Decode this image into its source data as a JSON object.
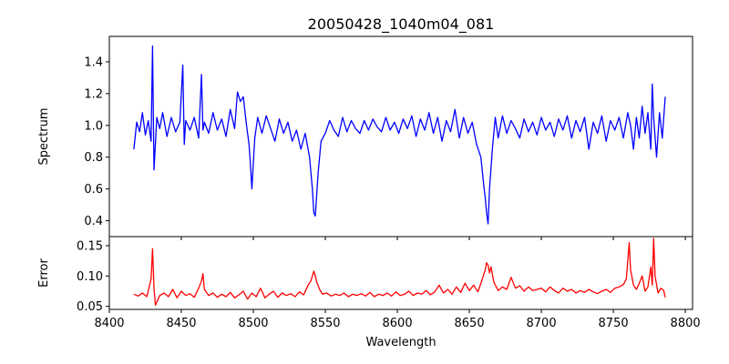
{
  "chart_data": {
    "type": "line",
    "title": "20050428_1040m04_081",
    "xlabel": "Wavelength",
    "xlim": [
      8400,
      8805
    ],
    "x_ticks": [
      "8400",
      "8450",
      "8500",
      "8550",
      "8600",
      "8650",
      "8700",
      "8750",
      "8800"
    ],
    "x_tick_values": [
      8400,
      8450,
      8500,
      8550,
      8600,
      8650,
      8700,
      8750,
      8800
    ],
    "panels": [
      {
        "name": "spectrum",
        "ylabel": "Spectrum",
        "ylim": [
          0.3,
          1.56
        ],
        "y_ticks": [
          "0.4",
          "0.6",
          "0.8",
          "1.0",
          "1.2",
          "1.4"
        ],
        "y_tick_values": [
          0.4,
          0.6,
          0.8,
          1.0,
          1.2,
          1.4
        ],
        "series": [
          {
            "name": "Spectrum",
            "color": "#0000ff",
            "x": [
              8417,
              8419,
              8421,
              8423,
              8425,
              8427,
              8429,
              8430,
              8431,
              8433,
              8435,
              8437,
              8440,
              8443,
              8446,
              8449,
              8451,
              8452,
              8453,
              8456,
              8459,
              8462,
              8464,
              8465,
              8466,
              8469,
              8472,
              8475,
              8478,
              8481,
              8484,
              8487,
              8489,
              8491,
              8493,
              8495,
              8497,
              8498,
              8499,
              8501,
              8503,
              8506,
              8509,
              8512,
              8515,
              8518,
              8521,
              8524,
              8527,
              8530,
              8533,
              8536,
              8539,
              8541,
              8542,
              8543,
              8545,
              8547,
              8550,
              8553,
              8556,
              8559,
              8562,
              8565,
              8568,
              8571,
              8574,
              8577,
              8580,
              8583,
              8586,
              8589,
              8592,
              8595,
              8598,
              8601,
              8604,
              8607,
              8610,
              8613,
              8616,
              8619,
              8622,
              8625,
              8628,
              8631,
              8634,
              8637,
              8640,
              8643,
              8646,
              8649,
              8652,
              8655,
              8658,
              8660,
              8661,
              8662,
              8663,
              8664,
              8666,
              8668,
              8670,
              8673,
              8676,
              8679,
              8682,
              8685,
              8688,
              8691,
              8694,
              8697,
              8700,
              8703,
              8706,
              8709,
              8712,
              8715,
              8718,
              8721,
              8724,
              8727,
              8730,
              8733,
              8736,
              8739,
              8742,
              8745,
              8748,
              8751,
              8754,
              8757,
              8760,
              8762,
              8764,
              8766,
              8768,
              8770,
              8772,
              8774,
              8776,
              8777,
              8778,
              8780,
              8782,
              8784,
              8786
            ],
            "y": [
              0.85,
              1.02,
              0.96,
              1.08,
              0.94,
              1.03,
              0.9,
              1.5,
              0.72,
              1.05,
              0.98,
              1.08,
              0.93,
              1.05,
              0.96,
              1.02,
              1.38,
              0.88,
              1.03,
              0.97,
              1.05,
              0.92,
              1.32,
              0.97,
              1.02,
              0.95,
              1.08,
              0.97,
              1.04,
              0.93,
              1.1,
              0.98,
              1.21,
              1.15,
              1.18,
              1.02,
              0.88,
              0.75,
              0.6,
              0.92,
              1.05,
              0.95,
              1.06,
              0.98,
              0.9,
              1.04,
              0.95,
              1.02,
              0.9,
              0.97,
              0.85,
              0.95,
              0.8,
              0.6,
              0.45,
              0.43,
              0.7,
              0.9,
              0.95,
              1.03,
              0.97,
              0.93,
              1.05,
              0.96,
              1.03,
              0.98,
              0.95,
              1.03,
              0.97,
              1.04,
              0.99,
              0.96,
              1.05,
              0.97,
              1.02,
              0.95,
              1.04,
              0.98,
              1.06,
              0.93,
              1.04,
              0.97,
              1.08,
              0.95,
              1.05,
              0.9,
              1.03,
              0.96,
              1.1,
              0.92,
              1.05,
              0.95,
              1.02,
              0.88,
              0.8,
              0.62,
              0.55,
              0.45,
              0.38,
              0.6,
              0.85,
              1.05,
              0.92,
              1.06,
              0.95,
              1.03,
              0.98,
              0.92,
              1.04,
              0.96,
              1.02,
              0.94,
              1.05,
              0.97,
              1.02,
              0.93,
              1.04,
              0.97,
              1.06,
              0.92,
              1.03,
              0.96,
              1.05,
              0.85,
              1.02,
              0.95,
              1.06,
              0.9,
              1.03,
              0.97,
              1.05,
              0.92,
              1.08,
              1.0,
              0.85,
              1.05,
              0.92,
              1.12,
              0.95,
              1.08,
              0.85,
              1.26,
              1.05,
              0.8,
              1.08,
              0.92,
              1.18
            ]
          }
        ]
      },
      {
        "name": "error",
        "ylabel": "Error",
        "ylim": [
          0.045,
          0.165
        ],
        "y_ticks": [
          "0.05",
          "0.10",
          "0.15"
        ],
        "y_tick_values": [
          0.05,
          0.1,
          0.15
        ],
        "series": [
          {
            "name": "Error",
            "color": "#ff0000",
            "x": [
              8417,
              8420,
              8423,
              8426,
              8428,
              8429,
              8430,
              8431,
              8432,
              8435,
              8438,
              8441,
              8444,
              8447,
              8450,
              8453,
              8456,
              8459,
              8462,
              8464,
              8465,
              8466,
              8469,
              8472,
              8475,
              8478,
              8481,
              8484,
              8487,
              8490,
              8493,
              8496,
              8499,
              8502,
              8505,
              8508,
              8511,
              8514,
              8517,
              8520,
              8523,
              8526,
              8529,
              8532,
              8535,
              8538,
              8540,
              8542,
              8543,
              8544,
              8546,
              8548,
              8551,
              8554,
              8557,
              8560,
              8563,
              8566,
              8569,
              8572,
              8575,
              8578,
              8581,
              8584,
              8587,
              8590,
              8593,
              8596,
              8599,
              8602,
              8605,
              8608,
              8611,
              8614,
              8617,
              8620,
              8623,
              8626,
              8629,
              8632,
              8635,
              8638,
              8641,
              8644,
              8647,
              8650,
              8653,
              8656,
              8659,
              8661,
              8662,
              8663,
              8664,
              8665,
              8667,
              8670,
              8673,
              8676,
              8679,
              8682,
              8685,
              8688,
              8691,
              8694,
              8697,
              8700,
              8703,
              8706,
              8709,
              8712,
              8715,
              8718,
              8721,
              8724,
              8727,
              8730,
              8733,
              8736,
              8739,
              8742,
              8745,
              8748,
              8751,
              8754,
              8757,
              8759,
              8760,
              8761,
              8762,
              8764,
              8766,
              8768,
              8770,
              8772,
              8774,
              8776,
              8777,
              8778,
              8779,
              8781,
              8783,
              8785,
              8786
            ],
            "y": [
              0.07,
              0.067,
              0.072,
              0.066,
              0.085,
              0.095,
              0.145,
              0.08,
              0.052,
              0.068,
              0.072,
              0.066,
              0.078,
              0.064,
              0.075,
              0.068,
              0.071,
              0.065,
              0.08,
              0.092,
              0.104,
              0.078,
              0.068,
              0.072,
              0.065,
              0.07,
              0.066,
              0.073,
              0.064,
              0.069,
              0.075,
              0.062,
              0.072,
              0.066,
              0.08,
              0.064,
              0.07,
              0.075,
              0.065,
              0.072,
              0.068,
              0.071,
              0.066,
              0.074,
              0.069,
              0.085,
              0.092,
              0.108,
              0.1,
              0.09,
              0.078,
              0.07,
              0.072,
              0.067,
              0.07,
              0.068,
              0.072,
              0.066,
              0.07,
              0.068,
              0.071,
              0.067,
              0.073,
              0.066,
              0.07,
              0.068,
              0.072,
              0.067,
              0.074,
              0.068,
              0.07,
              0.075,
              0.068,
              0.072,
              0.07,
              0.076,
              0.069,
              0.074,
              0.085,
              0.072,
              0.078,
              0.07,
              0.082,
              0.073,
              0.088,
              0.076,
              0.085,
              0.074,
              0.095,
              0.11,
              0.122,
              0.118,
              0.105,
              0.115,
              0.09,
              0.076,
              0.082,
              0.078,
              0.098,
              0.08,
              0.084,
              0.075,
              0.082,
              0.076,
              0.078,
              0.08,
              0.074,
              0.082,
              0.076,
              0.072,
              0.08,
              0.075,
              0.078,
              0.072,
              0.076,
              0.073,
              0.078,
              0.074,
              0.071,
              0.075,
              0.078,
              0.073,
              0.08,
              0.082,
              0.086,
              0.095,
              0.125,
              0.155,
              0.11,
              0.085,
              0.078,
              0.088,
              0.1,
              0.075,
              0.082,
              0.115,
              0.085,
              0.162,
              0.1,
              0.072,
              0.08,
              0.076,
              0.065
            ]
          }
        ]
      }
    ]
  }
}
